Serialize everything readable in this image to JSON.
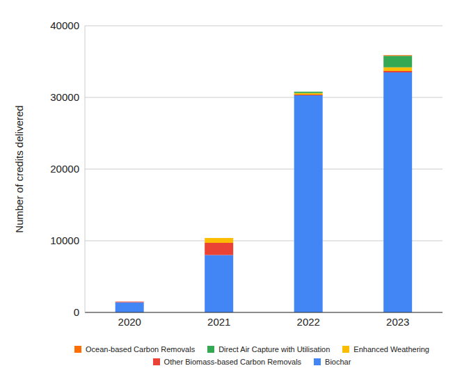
{
  "chart_data": {
    "type": "bar",
    "y_label": "Number of credits delivered",
    "categories": [
      "2020",
      "2021",
      "2022",
      "2023"
    ],
    "series": [
      {
        "name": "Biochar",
        "color": "#4285f4",
        "values": [
          1400,
          8000,
          30300,
          33500
        ]
      },
      {
        "name": "Other Biomass-based Carbon Removals",
        "color": "#ea4335",
        "values": [
          100,
          1700,
          100,
          200
        ]
      },
      {
        "name": "Enhanced Weathering",
        "color": "#fbbc04",
        "values": [
          0,
          700,
          200,
          500
        ]
      },
      {
        "name": "Direct Air Capture with Utilisation",
        "color": "#34a853",
        "values": [
          0,
          0,
          200,
          1600
        ]
      },
      {
        "name": "Ocean-based Carbon Removals",
        "color": "#ff6d01",
        "values": [
          0,
          0,
          0,
          100
        ]
      }
    ],
    "ylim": [
      0,
      40000
    ],
    "yticks": [
      0,
      10000,
      20000,
      30000,
      40000
    ],
    "grid": true,
    "stacked": true,
    "legend": "bottom"
  }
}
